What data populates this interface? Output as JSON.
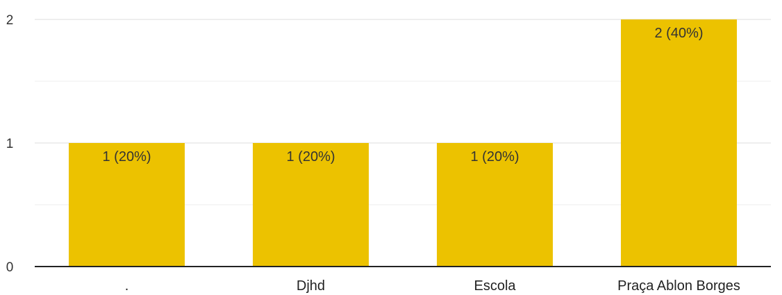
{
  "chart_data": {
    "type": "bar",
    "categories": [
      ".",
      "Djhd",
      "Escola",
      "Praça Ablon Borges"
    ],
    "values": [
      1,
      1,
      1,
      2
    ],
    "data_labels": [
      "1 (20%)",
      "1 (20%)",
      "1 (20%)",
      "2 (40%)"
    ],
    "title": "",
    "xlabel": "",
    "ylabel": "",
    "ylim": [
      0,
      2
    ],
    "yticks": [
      0,
      1,
      2
    ],
    "ytick_labels": [
      "0",
      "1",
      "2"
    ],
    "grid": true,
    "legend": "none",
    "bar_color": "#ecc200",
    "grid_color": "#eeeeee",
    "axis_color": "#222222"
  }
}
